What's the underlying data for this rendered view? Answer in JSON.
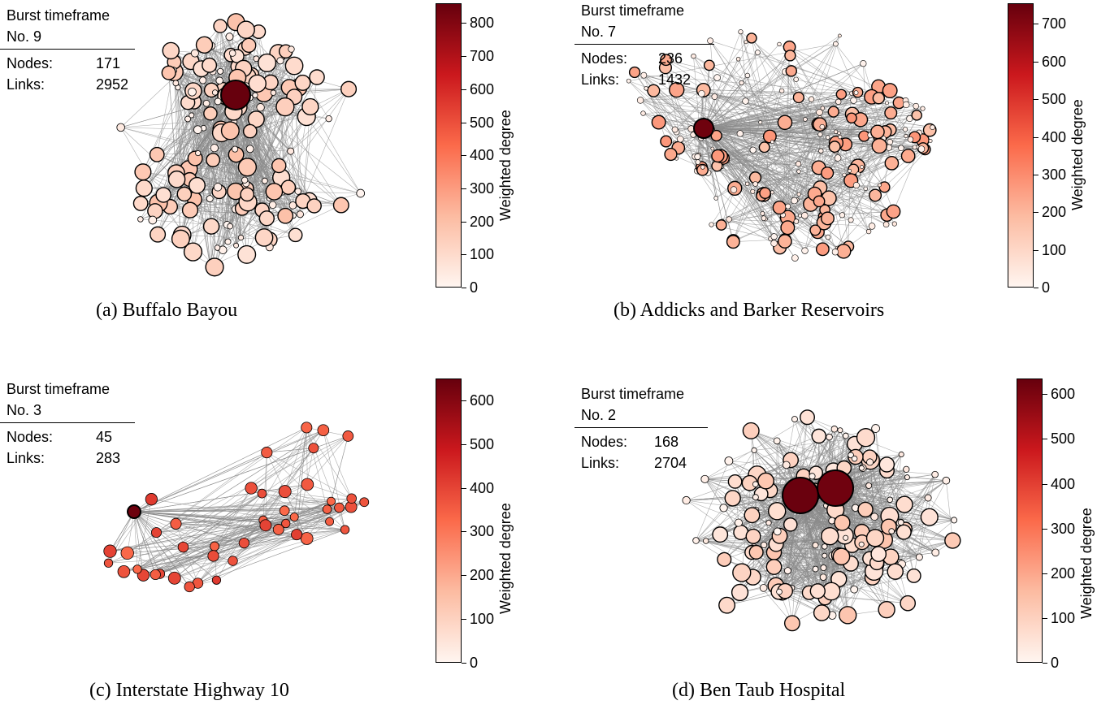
{
  "colorbar_label": "Weighted degree",
  "colormap": [
    "#fff5f0",
    "#fcbba1",
    "#fb6a4a",
    "#cb181d",
    "#67000d"
  ],
  "panels": [
    {
      "caption": "(a) Buffalo Bayou",
      "timeframe_line1": "Burst timeframe",
      "timeframe_line2": "No. 9",
      "nodes_label": "Nodes:",
      "nodes_value": "171",
      "links_label": "Links:",
      "links_value": "2952",
      "cbar_max": 860,
      "ticks": [
        "0",
        "100",
        "200",
        "300",
        "400",
        "500",
        "600",
        "700",
        "800"
      ],
      "hub_values": [
        860
      ]
    },
    {
      "caption": "(b) Addicks and Barker Reservoirs",
      "timeframe_line1": "Burst timeframe",
      "timeframe_line2": "No. 7",
      "nodes_label": "Nodes:",
      "nodes_value": "236",
      "links_label": "Links:",
      "links_value": "1432",
      "cbar_max": 755,
      "ticks": [
        "0",
        "100",
        "200",
        "300",
        "400",
        "500",
        "600",
        "700"
      ],
      "hub_values": [
        740
      ]
    },
    {
      "caption": "(c) Interstate Highway 10",
      "timeframe_line1": "Burst timeframe",
      "timeframe_line2": "No. 3",
      "nodes_label": "Nodes:",
      "nodes_value": "45",
      "links_label": "Links:",
      "links_value": "283",
      "cbar_max": 650,
      "ticks": [
        "0",
        "100",
        "200",
        "300",
        "400",
        "500",
        "600"
      ],
      "hub_values": [
        640
      ]
    },
    {
      "caption": "(d) Ben Taub Hospital",
      "timeframe_line1": "Burst timeframe",
      "timeframe_line2": "No. 2",
      "nodes_label": "Nodes:",
      "nodes_value": "168",
      "links_label": "Links:",
      "links_value": "2704",
      "cbar_max": 635,
      "ticks": [
        "0",
        "100",
        "200",
        "300",
        "400",
        "500",
        "600"
      ],
      "hub_values": [
        630,
        620
      ]
    }
  ]
}
